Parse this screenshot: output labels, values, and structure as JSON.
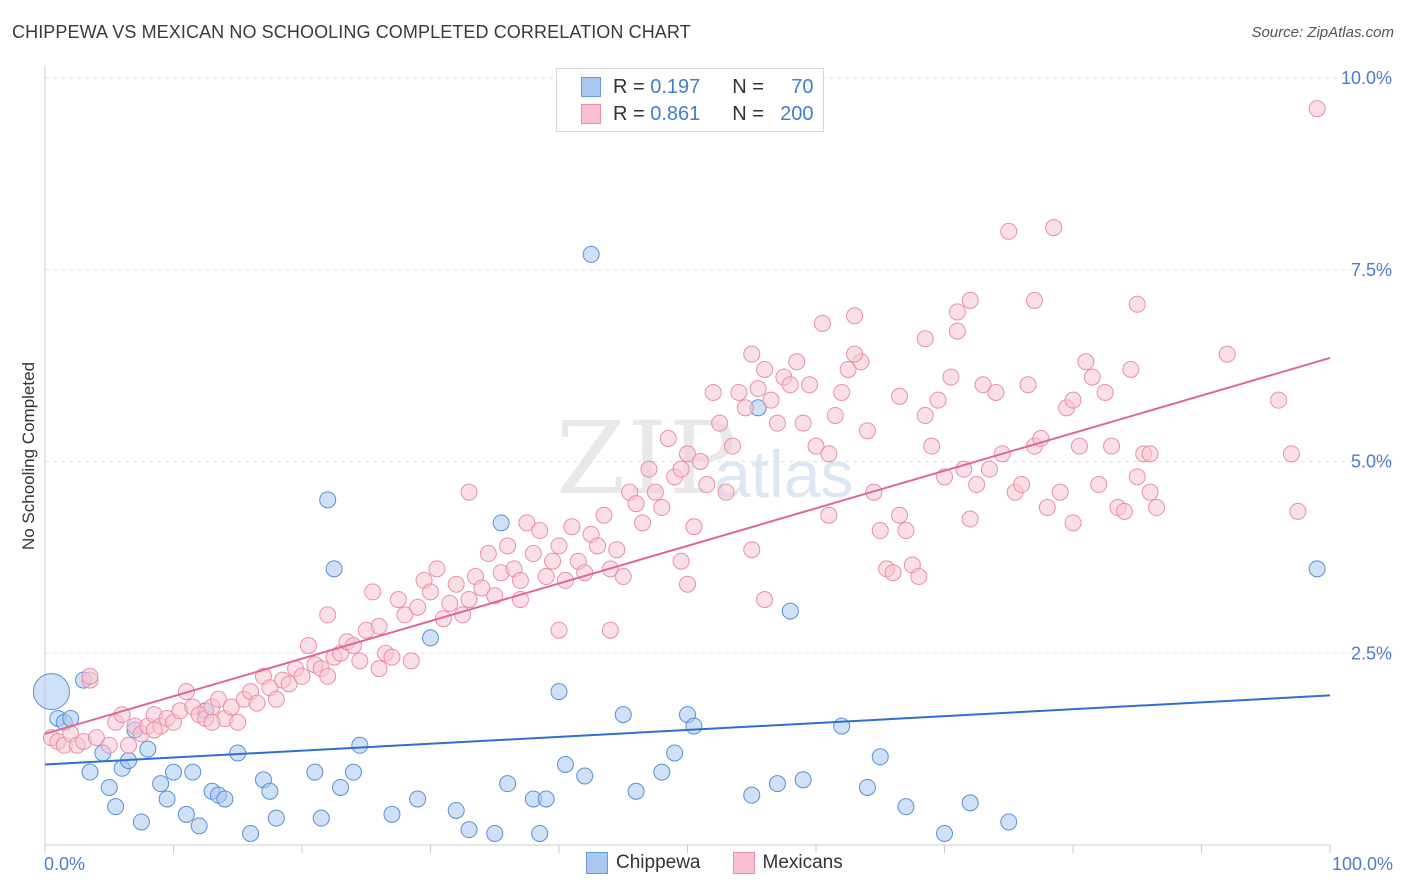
{
  "title": "CHIPPEWA VS MEXICAN NO SCHOOLING COMPLETED CORRELATION CHART",
  "source": "Source: ZipAtlas.com",
  "watermark": {
    "zip": "ZIP",
    "atlas": "atlas"
  },
  "legend": {
    "rows": [
      {
        "r_label": "R =",
        "r": "0.197",
        "n_label": "N =",
        "n": "70",
        "color": "#a8c8f0",
        "border": "#6a9bd8"
      },
      {
        "r_label": "R =",
        "r": "0.861",
        "n_label": "N =",
        "n": "200",
        "color": "#f8c0d0",
        "border": "#e890a8"
      }
    ]
  },
  "bottom_legend": [
    {
      "label": "Chippewa",
      "color": "#a8c8f0",
      "border": "#6a9bd8"
    },
    {
      "label": "Mexicans",
      "color": "#f8c0d0",
      "border": "#e890a8"
    }
  ],
  "chart_data": {
    "type": "scatter",
    "title": "CHIPPEWA VS MEXICAN NO SCHOOLING COMPLETED CORRELATION CHART",
    "ylabel": "No Schooling Completed",
    "xlabel": "",
    "xlim": [
      0,
      100
    ],
    "ylim": [
      0,
      10
    ],
    "x_tick_labels": [
      "0.0%",
      "100.0%"
    ],
    "y_ticks": [
      2.5,
      5.0,
      7.5,
      10.0
    ],
    "y_tick_labels": [
      "2.5%",
      "5.0%",
      "7.5%",
      "10.0%"
    ],
    "grid": true,
    "colors": {
      "chippewa_fill": "#a8c8f0",
      "chippewa_stroke": "#5b8fd6",
      "chippewa_line": "#2f6fd0",
      "mexicans_fill": "#f8c4d4",
      "mexicans_stroke": "#e890a8",
      "mexicans_line": "#e06890"
    },
    "series": [
      {
        "name": "Chippewa",
        "trend": {
          "x": [
            0,
            100
          ],
          "y": [
            1.05,
            1.95
          ]
        },
        "points": [
          [
            0.5,
            2.0
          ],
          [
            1,
            1.65
          ],
          [
            1.5,
            1.6
          ],
          [
            2,
            1.65
          ],
          [
            3,
            2.15
          ],
          [
            3.5,
            0.95
          ],
          [
            4.5,
            1.2
          ],
          [
            5,
            0.75
          ],
          [
            5.5,
            0.5
          ],
          [
            6,
            1.0
          ],
          [
            6.5,
            1.1
          ],
          [
            7,
            1.5
          ],
          [
            7.5,
            0.3
          ],
          [
            8,
            1.25
          ],
          [
            9,
            0.8
          ],
          [
            9.5,
            0.6
          ],
          [
            10,
            0.95
          ],
          [
            11,
            0.4
          ],
          [
            11.5,
            0.95
          ],
          [
            12,
            0.25
          ],
          [
            13,
            0.7
          ],
          [
            13.5,
            0.65
          ],
          [
            14,
            0.6
          ],
          [
            15,
            1.2
          ],
          [
            16,
            0.15
          ],
          [
            17,
            0.85
          ],
          [
            17.5,
            0.7
          ],
          [
            18,
            0.35
          ],
          [
            21,
            0.95
          ],
          [
            21.5,
            0.35
          ],
          [
            22,
            4.5
          ],
          [
            22.5,
            3.6
          ],
          [
            23,
            0.75
          ],
          [
            24,
            0.95
          ],
          [
            24.5,
            1.3
          ],
          [
            27,
            0.4
          ],
          [
            29,
            0.6
          ],
          [
            30,
            2.7
          ],
          [
            32,
            0.45
          ],
          [
            33,
            0.2
          ],
          [
            35,
            0.15
          ],
          [
            35.5,
            4.2
          ],
          [
            36,
            0.8
          ],
          [
            38,
            0.6
          ],
          [
            38.5,
            0.15
          ],
          [
            39,
            0.6
          ],
          [
            40,
            2.0
          ],
          [
            40.5,
            1.05
          ],
          [
            42,
            0.9
          ],
          [
            42.5,
            7.7
          ],
          [
            45,
            1.7
          ],
          [
            46,
            0.7
          ],
          [
            48,
            0.95
          ],
          [
            49,
            1.2
          ],
          [
            50,
            1.7
          ],
          [
            50.5,
            1.55
          ],
          [
            55,
            0.65
          ],
          [
            55.5,
            5.7
          ],
          [
            57,
            0.8
          ],
          [
            58,
            3.05
          ],
          [
            59,
            0.85
          ],
          [
            62,
            1.55
          ],
          [
            64,
            0.75
          ],
          [
            65,
            1.15
          ],
          [
            67,
            0.5
          ],
          [
            70,
            0.15
          ],
          [
            72,
            0.55
          ],
          [
            75,
            0.3
          ],
          [
            99,
            3.6
          ],
          [
            12.5,
            1.75
          ]
        ]
      },
      {
        "name": "Mexicans",
        "trend": {
          "x": [
            0,
            100
          ],
          "y": [
            1.45,
            6.35
          ]
        },
        "points": [
          [
            0.5,
            1.4
          ],
          [
            1,
            1.35
          ],
          [
            1.5,
            1.3
          ],
          [
            2,
            1.45
          ],
          [
            2.5,
            1.3
          ],
          [
            3,
            1.35
          ],
          [
            3.5,
            2.15
          ],
          [
            4,
            1.4
          ],
          [
            5,
            1.3
          ],
          [
            5.5,
            1.6
          ],
          [
            6,
            1.7
          ],
          [
            6.5,
            1.3
          ],
          [
            7,
            1.55
          ],
          [
            7.5,
            1.45
          ],
          [
            8,
            1.55
          ],
          [
            8.5,
            1.7
          ],
          [
            9,
            1.55
          ],
          [
            9.5,
            1.65
          ],
          [
            10,
            1.6
          ],
          [
            10.5,
            1.75
          ],
          [
            11,
            2.0
          ],
          [
            11.5,
            1.8
          ],
          [
            12,
            1.7
          ],
          [
            12.5,
            1.65
          ],
          [
            13,
            1.8
          ],
          [
            13.5,
            1.9
          ],
          [
            14,
            1.65
          ],
          [
            14.5,
            1.8
          ],
          [
            15,
            1.6
          ],
          [
            15.5,
            1.9
          ],
          [
            16,
            2.0
          ],
          [
            16.5,
            1.85
          ],
          [
            17,
            2.2
          ],
          [
            17.5,
            2.05
          ],
          [
            18,
            1.9
          ],
          [
            18.5,
            2.15
          ],
          [
            19,
            2.1
          ],
          [
            19.5,
            2.3
          ],
          [
            20,
            2.2
          ],
          [
            20.5,
            2.6
          ],
          [
            21,
            2.35
          ],
          [
            21.5,
            2.3
          ],
          [
            22,
            2.2
          ],
          [
            22.5,
            2.45
          ],
          [
            23,
            2.5
          ],
          [
            23.5,
            2.65
          ],
          [
            24,
            2.6
          ],
          [
            24.5,
            2.4
          ],
          [
            25,
            2.8
          ],
          [
            25.5,
            3.3
          ],
          [
            26,
            2.85
          ],
          [
            26.5,
            2.5
          ],
          [
            27,
            2.45
          ],
          [
            27.5,
            3.2
          ],
          [
            28,
            3.0
          ],
          [
            28.5,
            2.4
          ],
          [
            29,
            3.1
          ],
          [
            29.5,
            3.45
          ],
          [
            30,
            3.3
          ],
          [
            30.5,
            3.6
          ],
          [
            31,
            2.95
          ],
          [
            31.5,
            3.15
          ],
          [
            32,
            3.4
          ],
          [
            32.5,
            3.0
          ],
          [
            33,
            3.2
          ],
          [
            33.5,
            3.5
          ],
          [
            34,
            3.35
          ],
          [
            34.5,
            3.8
          ],
          [
            35,
            3.25
          ],
          [
            35.5,
            3.55
          ],
          [
            36,
            3.9
          ],
          [
            36.5,
            3.6
          ],
          [
            37,
            3.45
          ],
          [
            37.5,
            4.2
          ],
          [
            38,
            3.8
          ],
          [
            38.5,
            4.1
          ],
          [
            39,
            3.5
          ],
          [
            39.5,
            3.7
          ],
          [
            40,
            3.9
          ],
          [
            40.5,
            3.45
          ],
          [
            41,
            4.15
          ],
          [
            41.5,
            3.7
          ],
          [
            42,
            3.55
          ],
          [
            42.5,
            4.05
          ],
          [
            43,
            3.9
          ],
          [
            43.5,
            4.3
          ],
          [
            44,
            3.6
          ],
          [
            44.5,
            3.85
          ],
          [
            45,
            3.5
          ],
          [
            45.5,
            4.6
          ],
          [
            46,
            4.45
          ],
          [
            46.5,
            4.2
          ],
          [
            47,
            4.9
          ],
          [
            47.5,
            4.6
          ],
          [
            48,
            4.4
          ],
          [
            48.5,
            5.3
          ],
          [
            49,
            4.8
          ],
          [
            49.5,
            4.9
          ],
          [
            50,
            5.1
          ],
          [
            50.5,
            4.15
          ],
          [
            51,
            5.0
          ],
          [
            51.5,
            4.7
          ],
          [
            52,
            5.9
          ],
          [
            52.5,
            5.5
          ],
          [
            53,
            4.6
          ],
          [
            53.5,
            5.2
          ],
          [
            54,
            5.9
          ],
          [
            54.5,
            5.7
          ],
          [
            55,
            6.4
          ],
          [
            55.5,
            5.95
          ],
          [
            56,
            6.2
          ],
          [
            56.5,
            5.8
          ],
          [
            57,
            5.5
          ],
          [
            57.5,
            6.1
          ],
          [
            58,
            6.0
          ],
          [
            58.5,
            6.3
          ],
          [
            59,
            5.5
          ],
          [
            59.5,
            6.0
          ],
          [
            60,
            5.2
          ],
          [
            60.5,
            6.8
          ],
          [
            61,
            5.1
          ],
          [
            61.5,
            5.6
          ],
          [
            62,
            5.9
          ],
          [
            62.5,
            6.2
          ],
          [
            63,
            6.9
          ],
          [
            63.5,
            6.3
          ],
          [
            64,
            5.4
          ],
          [
            64.5,
            4.6
          ],
          [
            65,
            4.1
          ],
          [
            65.5,
            3.6
          ],
          [
            66,
            3.55
          ],
          [
            66.5,
            4.3
          ],
          [
            67,
            4.1
          ],
          [
            67.5,
            3.65
          ],
          [
            68,
            3.5
          ],
          [
            68.5,
            5.6
          ],
          [
            69,
            5.2
          ],
          [
            69.5,
            5.8
          ],
          [
            70,
            4.8
          ],
          [
            70.5,
            6.1
          ],
          [
            71,
            6.7
          ],
          [
            71.5,
            4.9
          ],
          [
            72,
            4.25
          ],
          [
            72.5,
            4.7
          ],
          [
            73,
            6.0
          ],
          [
            73.5,
            4.9
          ],
          [
            74,
            5.9
          ],
          [
            74.5,
            5.1
          ],
          [
            75,
            8.0
          ],
          [
            75.5,
            4.6
          ],
          [
            76,
            4.7
          ],
          [
            76.5,
            6.0
          ],
          [
            77,
            5.2
          ],
          [
            77.5,
            5.3
          ],
          [
            78,
            4.4
          ],
          [
            78.5,
            8.05
          ],
          [
            79,
            4.6
          ],
          [
            79.5,
            5.7
          ],
          [
            80,
            4.2
          ],
          [
            80.5,
            5.2
          ],
          [
            81,
            6.3
          ],
          [
            81.5,
            6.1
          ],
          [
            82,
            4.7
          ],
          [
            82.5,
            5.9
          ],
          [
            83,
            5.2
          ],
          [
            83.5,
            4.4
          ],
          [
            84,
            4.35
          ],
          [
            84.5,
            6.2
          ],
          [
            85,
            4.8
          ],
          [
            85.5,
            5.1
          ],
          [
            86,
            5.1
          ],
          [
            86.5,
            4.4
          ],
          [
            99,
            9.6
          ],
          [
            3.5,
            2.2
          ],
          [
            8.5,
            1.5
          ],
          [
            13,
            1.6
          ],
          [
            22,
            3.0
          ],
          [
            26,
            2.3
          ],
          [
            33,
            4.6
          ],
          [
            37,
            3.2
          ],
          [
            40,
            2.8
          ],
          [
            44,
            2.8
          ],
          [
            49.5,
            3.7
          ],
          [
            50,
            3.4
          ],
          [
            55,
            3.85
          ],
          [
            56,
            3.2
          ],
          [
            61,
            4.3
          ],
          [
            63,
            6.4
          ],
          [
            66.5,
            5.85
          ],
          [
            68.5,
            6.6
          ],
          [
            71,
            6.95
          ],
          [
            72,
            7.1
          ],
          [
            77,
            7.1
          ],
          [
            80,
            5.8
          ],
          [
            85,
            7.05
          ],
          [
            86,
            4.6
          ],
          [
            92,
            6.4
          ],
          [
            96,
            5.8
          ],
          [
            97,
            5.1
          ],
          [
            97.5,
            4.35
          ]
        ]
      }
    ]
  }
}
